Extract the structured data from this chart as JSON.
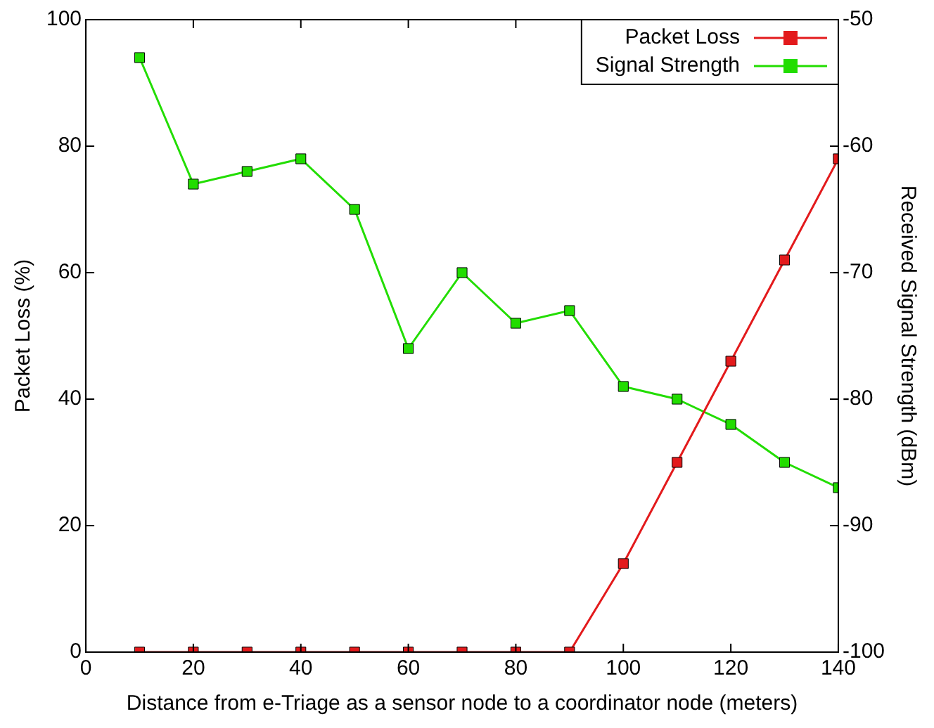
{
  "chart_data": {
    "type": "line",
    "xlabel": "Distance from e-Triage as a sensor node to a coordinator node (meters)",
    "ylabel": "Packet Loss (%)",
    "y2label": "Received Signal Strength (dBm)",
    "x": [
      10,
      20,
      30,
      40,
      50,
      60,
      70,
      80,
      90,
      100,
      110,
      120,
      130,
      140
    ],
    "series": [
      {
        "name": "Packet Loss",
        "color": "#e31a1c",
        "values": [
          0,
          0,
          0,
          0,
          0,
          0,
          0,
          0,
          0,
          14,
          30,
          46,
          62,
          78
        ]
      },
      {
        "name": "Signal Strength",
        "color": "#22dd00",
        "axis": "y2",
        "values": [
          -53,
          -63,
          -62,
          -61,
          -65,
          -76,
          -70,
          -74,
          -73,
          -79,
          -80,
          -82,
          -85,
          -87
        ]
      }
    ],
    "xlim": [
      0,
      140
    ],
    "xticks": [
      0,
      20,
      40,
      60,
      80,
      100,
      120,
      140
    ],
    "ylim": [
      0,
      100
    ],
    "yticks": [
      0,
      20,
      40,
      60,
      80,
      100
    ],
    "y2lim": [
      -100,
      -50
    ],
    "y2ticks": [
      -100,
      -90,
      -80,
      -70,
      -60,
      -50
    ],
    "grid": false,
    "legend": "top right",
    "marker": "square",
    "line_style": "solid"
  }
}
